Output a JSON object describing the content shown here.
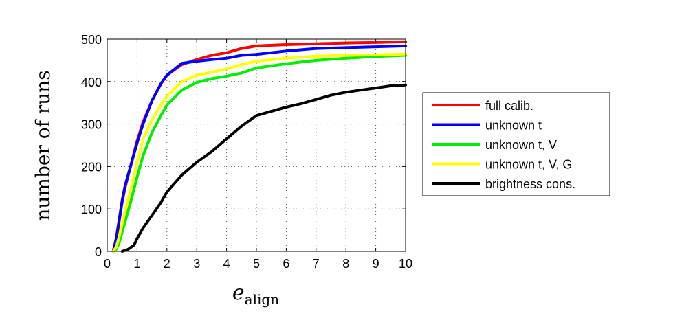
{
  "chart_data": {
    "type": "line",
    "xlabel_main": "e",
    "xlabel_sub": "align",
    "ylabel": "number of runs",
    "xlim": [
      0,
      10
    ],
    "ylim": [
      0,
      500
    ],
    "xticks": [
      0,
      1,
      2,
      3,
      4,
      5,
      6,
      7,
      8,
      9,
      10
    ],
    "yticks": [
      0,
      100,
      200,
      300,
      400,
      500
    ],
    "grid": true,
    "legend_position": "right",
    "series": [
      {
        "name": "full calib.",
        "color": "#ff0000",
        "x": [
          0.2,
          0.3,
          0.4,
          0.5,
          0.6,
          0.8,
          1.0,
          1.2,
          1.5,
          1.8,
          2.0,
          2.5,
          3.0,
          3.5,
          4.0,
          4.5,
          5.0,
          6.0,
          7.0,
          8.0,
          9.0,
          10.0
        ],
        "y": [
          0,
          25,
          70,
          115,
          150,
          205,
          260,
          305,
          355,
          395,
          415,
          440,
          452,
          462,
          468,
          478,
          484,
          487,
          489,
          491,
          492,
          494
        ]
      },
      {
        "name": "unknown t",
        "color": "#0000ff",
        "x": [
          0.2,
          0.3,
          0.4,
          0.5,
          0.6,
          0.8,
          1.0,
          1.2,
          1.5,
          1.8,
          2.0,
          2.5,
          3.0,
          3.5,
          4.0,
          4.5,
          5.0,
          6.0,
          7.0,
          8.0,
          9.0,
          10.0
        ],
        "y": [
          0,
          30,
          75,
          120,
          155,
          205,
          255,
          300,
          355,
          395,
          415,
          443,
          448,
          452,
          455,
          462,
          464,
          472,
          478,
          480,
          482,
          484
        ]
      },
      {
        "name": "unknown t, V",
        "color": "#00ee00",
        "x": [
          0.2,
          0.3,
          0.4,
          0.5,
          0.6,
          0.8,
          1.0,
          1.2,
          1.5,
          1.8,
          2.0,
          2.5,
          3.0,
          3.5,
          4.0,
          4.5,
          5.0,
          6.0,
          7.0,
          8.0,
          9.0,
          10.0
        ],
        "y": [
          0,
          5,
          20,
          45,
          70,
          120,
          175,
          225,
          280,
          320,
          345,
          380,
          398,
          407,
          413,
          420,
          432,
          442,
          450,
          455,
          459,
          462
        ]
      },
      {
        "name": "unknown t, V, G",
        "color": "#ffff00",
        "x": [
          0.2,
          0.3,
          0.4,
          0.5,
          0.6,
          0.8,
          1.0,
          1.2,
          1.5,
          1.8,
          2.0,
          2.5,
          3.0,
          3.5,
          4.0,
          4.5,
          5.0,
          6.0,
          7.0,
          8.0,
          9.0,
          10.0
        ],
        "y": [
          0,
          10,
          35,
          65,
          95,
          150,
          210,
          265,
          310,
          345,
          365,
          400,
          415,
          422,
          430,
          440,
          448,
          455,
          460,
          462,
          463,
          465
        ]
      },
      {
        "name": "brightness cons.",
        "color": "#000000",
        "x": [
          0.5,
          0.7,
          0.9,
          1.0,
          1.2,
          1.5,
          1.8,
          2.0,
          2.5,
          3.0,
          3.5,
          4.0,
          4.5,
          5.0,
          5.5,
          6.0,
          6.5,
          7.0,
          7.5,
          8.0,
          8.5,
          9.0,
          9.5,
          10.0
        ],
        "y": [
          0,
          5,
          15,
          30,
          55,
          85,
          115,
          140,
          180,
          210,
          235,
          265,
          295,
          320,
          330,
          340,
          348,
          358,
          368,
          375,
          380,
          385,
          390,
          392
        ]
      }
    ]
  }
}
